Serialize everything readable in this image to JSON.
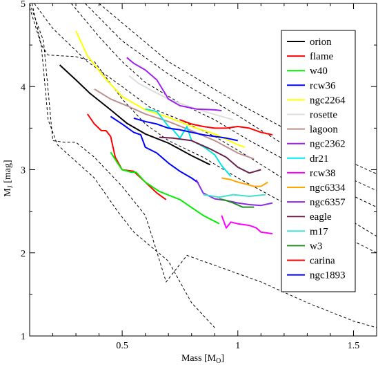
{
  "chart_data": {
    "type": "line",
    "xlabel": "Mass [M",
    "xlabel_sub": "O",
    "xlabel_close": "]",
    "ylabel": "M",
    "ylabel_sub": "J",
    "ylabel_rest": " [mag]",
    "xlim": [
      0.1,
      1.6
    ],
    "ylim": [
      1,
      5
    ],
    "xticks": [
      0.5,
      1.0,
      1.5
    ],
    "xtick_labels": [
      "0.5",
      "1",
      "1.5"
    ],
    "yticks": [
      1,
      2,
      3,
      4,
      5
    ],
    "ytick_labels": [
      "1",
      "2",
      "3",
      "4",
      "5"
    ],
    "legend_position": "right",
    "reference_curves": [
      [
        [
          0.1,
          4.95
        ],
        [
          0.15,
          4.5
        ],
        [
          0.18,
          3.6
        ],
        [
          0.22,
          3.3
        ],
        [
          0.3,
          3.1
        ],
        [
          0.38,
          2.9
        ],
        [
          0.48,
          2.5
        ],
        [
          0.55,
          2.25
        ],
        [
          0.7,
          1.9
        ],
        [
          0.8,
          1.4
        ],
        [
          0.9,
          1.1
        ]
      ],
      [
        [
          0.1,
          5.0
        ],
        [
          0.16,
          4.55
        ],
        [
          0.2,
          3.35
        ],
        [
          0.25,
          3.33
        ],
        [
          0.3,
          3.33
        ],
        [
          0.38,
          3.15
        ],
        [
          0.5,
          2.8
        ],
        [
          0.6,
          2.45
        ],
        [
          0.64,
          2.1
        ],
        [
          0.69,
          1.65
        ],
        [
          0.78,
          1.97
        ],
        [
          0.9,
          1.85
        ],
        [
          1.1,
          1.65
        ],
        [
          1.3,
          1.4
        ],
        [
          1.5,
          1.18
        ],
        [
          1.6,
          1.1
        ]
      ],
      [
        [
          0.11,
          5.0
        ],
        [
          0.15,
          4.5
        ],
        [
          0.18,
          4.38
        ],
        [
          0.3,
          4.36
        ],
        [
          0.38,
          4.3
        ],
        [
          0.5,
          3.85
        ],
        [
          0.6,
          3.55
        ],
        [
          0.7,
          3.35
        ],
        [
          0.85,
          3.15
        ],
        [
          1.0,
          2.9
        ],
        [
          1.2,
          2.6
        ],
        [
          1.4,
          2.28
        ],
        [
          1.6,
          2.0
        ]
      ],
      [
        [
          0.12,
          5.0
        ],
        [
          0.2,
          4.7
        ],
        [
          0.35,
          4.3
        ],
        [
          0.5,
          4.0
        ],
        [
          0.62,
          3.75
        ],
        [
          0.75,
          3.6
        ],
        [
          0.9,
          3.4
        ],
        [
          1.05,
          3.15
        ],
        [
          1.25,
          2.8
        ],
        [
          1.45,
          2.45
        ],
        [
          1.6,
          2.2
        ]
      ],
      [
        [
          0.28,
          5.0
        ],
        [
          0.4,
          4.6
        ],
        [
          0.5,
          4.3
        ],
        [
          0.6,
          4.05
        ],
        [
          0.75,
          3.8
        ],
        [
          0.9,
          3.6
        ],
        [
          1.05,
          3.35
        ],
        [
          1.25,
          3.05
        ],
        [
          1.45,
          2.75
        ],
        [
          1.6,
          2.55
        ]
      ],
      [
        [
          0.34,
          5.0
        ],
        [
          0.5,
          4.55
        ],
        [
          0.7,
          4.15
        ],
        [
          0.85,
          3.9
        ],
        [
          1.0,
          3.65
        ],
        [
          1.2,
          3.3
        ],
        [
          1.4,
          3.0
        ],
        [
          1.6,
          2.75
        ]
      ],
      [
        [
          0.4,
          5.0
        ],
        [
          0.55,
          4.65
        ],
        [
          0.7,
          4.3
        ],
        [
          0.85,
          4.05
        ],
        [
          1.0,
          3.8
        ],
        [
          1.2,
          3.5
        ],
        [
          1.4,
          3.2
        ],
        [
          1.6,
          2.95
        ]
      ]
    ],
    "series": [
      {
        "name": "orion",
        "color": "#000000",
        "points": [
          [
            0.23,
            4.26
          ],
          [
            0.3,
            4.08
          ],
          [
            0.36,
            3.92
          ],
          [
            0.45,
            3.72
          ],
          [
            0.52,
            3.56
          ],
          [
            0.6,
            3.43
          ],
          [
            0.7,
            3.32
          ],
          [
            0.8,
            3.17
          ],
          [
            0.88,
            3.06
          ]
        ]
      },
      {
        "name": "flame",
        "color": "#ff0000",
        "points": [
          [
            0.35,
            3.67
          ],
          [
            0.38,
            3.55
          ],
          [
            0.41,
            3.47
          ],
          [
            0.43,
            3.47
          ],
          [
            0.45,
            3.4
          ],
          [
            0.47,
            3.15
          ],
          [
            0.5,
            3.0
          ],
          [
            0.55,
            2.98
          ],
          [
            0.6,
            2.85
          ],
          [
            0.65,
            2.72
          ],
          [
            0.69,
            2.64
          ]
        ]
      },
      {
        "name": "w40",
        "color": "#00ee00",
        "points": [
          [
            0.45,
            3.21
          ],
          [
            0.48,
            3.08
          ],
          [
            0.5,
            3.0
          ],
          [
            0.54,
            2.97
          ],
          [
            0.56,
            2.97
          ],
          [
            0.6,
            2.85
          ],
          [
            0.66,
            2.74
          ],
          [
            0.75,
            2.64
          ],
          [
            0.85,
            2.45
          ],
          [
            0.92,
            2.35
          ]
        ]
      },
      {
        "name": "rcw36",
        "color": "#0000ff",
        "points": [
          [
            0.45,
            3.64
          ],
          [
            0.5,
            3.55
          ],
          [
            0.55,
            3.45
          ],
          [
            0.58,
            3.42
          ],
          [
            0.6,
            3.27
          ],
          [
            0.65,
            3.2
          ],
          [
            0.7,
            3.08
          ],
          [
            0.75,
            2.98
          ],
          [
            0.8,
            2.9
          ],
          [
            0.83,
            2.84
          ]
        ]
      },
      {
        "name": "ngc2264",
        "color": "#ffff00",
        "points": [
          [
            0.3,
            4.67
          ],
          [
            0.35,
            4.37
          ],
          [
            0.42,
            4.12
          ],
          [
            0.5,
            3.88
          ],
          [
            0.6,
            3.72
          ],
          [
            0.7,
            3.63
          ],
          [
            0.8,
            3.52
          ],
          [
            0.9,
            3.43
          ],
          [
            1.0,
            3.3
          ],
          [
            1.03,
            3.27
          ]
        ]
      },
      {
        "name": "rosette",
        "color": "#dddddd",
        "points": [
          [
            0.53,
            4.13
          ],
          [
            0.57,
            4.04
          ],
          [
            0.63,
            3.95
          ],
          [
            0.7,
            3.85
          ],
          [
            0.78,
            3.77
          ],
          [
            0.88,
            3.68
          ],
          [
            0.98,
            3.6
          ]
        ]
      },
      {
        "name": "lagoon",
        "color": "#bc8f8f",
        "points": [
          [
            0.38,
            3.97
          ],
          [
            0.45,
            3.85
          ],
          [
            0.52,
            3.77
          ],
          [
            0.6,
            3.67
          ],
          [
            0.7,
            3.58
          ],
          [
            0.8,
            3.47
          ],
          [
            0.9,
            3.35
          ],
          [
            1.0,
            3.2
          ],
          [
            1.07,
            3.13
          ]
        ]
      },
      {
        "name": "ngc2362",
        "color": "#a020f0",
        "points": [
          [
            0.52,
            4.35
          ],
          [
            0.55,
            4.28
          ],
          [
            0.6,
            4.2
          ],
          [
            0.65,
            4.08
          ],
          [
            0.7,
            3.85
          ],
          [
            0.75,
            3.77
          ],
          [
            0.82,
            3.73
          ],
          [
            0.9,
            3.72
          ],
          [
            0.93,
            3.71
          ]
        ]
      },
      {
        "name": "dr21",
        "color": "#00e5e5",
        "points": [
          [
            0.6,
            3.73
          ],
          [
            0.65,
            3.7
          ],
          [
            0.7,
            3.52
          ],
          [
            0.72,
            3.48
          ],
          [
            0.75,
            3.38
          ],
          [
            0.78,
            3.52
          ],
          [
            0.8,
            3.35
          ],
          [
            0.85,
            3.28
          ],
          [
            0.9,
            3.18
          ],
          [
            0.93,
            3.05
          ],
          [
            0.97,
            2.92
          ]
        ]
      },
      {
        "name": "rcw38",
        "color": "#ff00ff",
        "points": [
          [
            0.93,
            2.45
          ],
          [
            0.95,
            2.3
          ],
          [
            0.97,
            2.37
          ],
          [
            1.0,
            2.35
          ],
          [
            1.05,
            2.33
          ],
          [
            1.08,
            2.3
          ],
          [
            1.1,
            2.25
          ],
          [
            1.15,
            2.23
          ]
        ]
      },
      {
        "name": "ngc6334",
        "color": "#ffa500",
        "points": [
          [
            0.93,
            2.9
          ],
          [
            0.97,
            2.88
          ],
          [
            1.0,
            2.85
          ],
          [
            1.03,
            2.83
          ],
          [
            1.07,
            2.8
          ],
          [
            1.1,
            2.8
          ],
          [
            1.13,
            2.85
          ]
        ]
      },
      {
        "name": "ngc6357",
        "color": "#8a2be2",
        "points": [
          [
            0.82,
            2.88
          ],
          [
            0.85,
            2.72
          ],
          [
            0.9,
            2.65
          ],
          [
            0.95,
            2.63
          ],
          [
            1.0,
            2.6
          ],
          [
            1.05,
            2.58
          ],
          [
            1.1,
            2.57
          ],
          [
            1.15,
            2.6
          ]
        ]
      },
      {
        "name": "eagle",
        "color": "#6b1f4a",
        "points": [
          [
            0.66,
            3.39
          ],
          [
            0.72,
            3.38
          ],
          [
            0.8,
            3.35
          ],
          [
            0.88,
            3.25
          ],
          [
            0.95,
            3.15
          ],
          [
            1.0,
            3.03
          ],
          [
            1.05,
            2.96
          ],
          [
            1.1,
            3.0
          ]
        ]
      },
      {
        "name": "m17",
        "color": "#40e0d0",
        "points": [
          [
            0.85,
            2.7
          ],
          [
            0.92,
            2.67
          ],
          [
            0.98,
            2.7
          ],
          [
            1.05,
            2.68
          ],
          [
            1.12,
            2.7
          ]
        ]
      },
      {
        "name": "w3",
        "color": "#228b22",
        "points": [
          [
            0.92,
            2.65
          ],
          [
            0.95,
            2.63
          ],
          [
            0.98,
            2.6
          ],
          [
            1.02,
            2.55
          ],
          [
            1.05,
            2.55
          ],
          [
            1.07,
            2.55
          ]
        ]
      },
      {
        "name": "carina",
        "color": "#ff0000",
        "points": [
          [
            0.75,
            3.6
          ],
          [
            0.8,
            3.55
          ],
          [
            0.85,
            3.52
          ],
          [
            0.9,
            3.5
          ],
          [
            0.95,
            3.5
          ],
          [
            1.0,
            3.52
          ],
          [
            1.05,
            3.5
          ],
          [
            1.1,
            3.45
          ],
          [
            1.15,
            3.42
          ]
        ]
      },
      {
        "name": "ngc1893",
        "color": "#0000ff",
        "points": [
          [
            0.55,
            3.62
          ],
          [
            0.6,
            3.58
          ],
          [
            0.65,
            3.55
          ],
          [
            0.7,
            3.5
          ],
          [
            0.75,
            3.48
          ],
          [
            0.8,
            3.45
          ],
          [
            0.85,
            3.42
          ],
          [
            0.9,
            3.4
          ],
          [
            0.95,
            3.38
          ],
          [
            1.0,
            3.35
          ]
        ]
      }
    ]
  }
}
